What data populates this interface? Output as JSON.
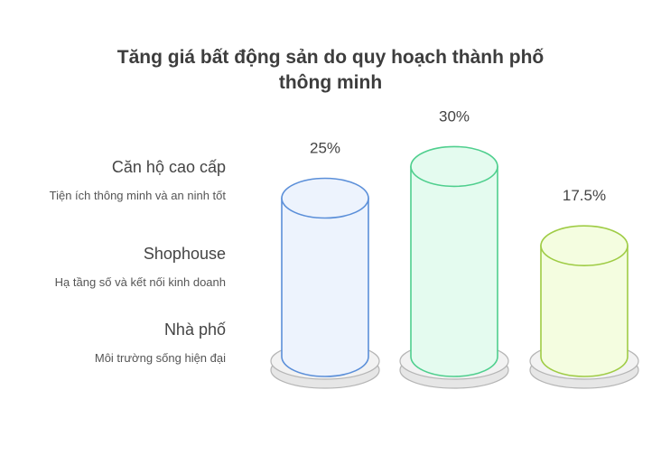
{
  "title_line1": "Tăng giá bất động sản do quy hoạch thành phố",
  "title_line2": "thông minh",
  "items": [
    {
      "name": "Căn hộ cao cấp",
      "desc": "Tiện ích thông minh và an ninh tốt"
    },
    {
      "name": "Shophouse",
      "desc": "Hạ tầng số và kết nối kinh doanh"
    },
    {
      "name": "Nhà phố",
      "desc": "Môi trường sống hiện đại"
    }
  ],
  "chart_data": {
    "type": "bar",
    "categories": [
      "Căn hộ cao cấp",
      "Shophouse",
      "Nhà phố"
    ],
    "values": [
      25,
      30,
      17.5
    ],
    "labels": [
      "25%",
      "30%",
      "17.5%"
    ],
    "colors": [
      {
        "stroke": "#5b8fd9",
        "fill": "#edf3fd"
      },
      {
        "stroke": "#4fcf8e",
        "fill": "#e4fbef"
      },
      {
        "stroke": "#9fcc45",
        "fill": "#f4fde0"
      }
    ]
  }
}
